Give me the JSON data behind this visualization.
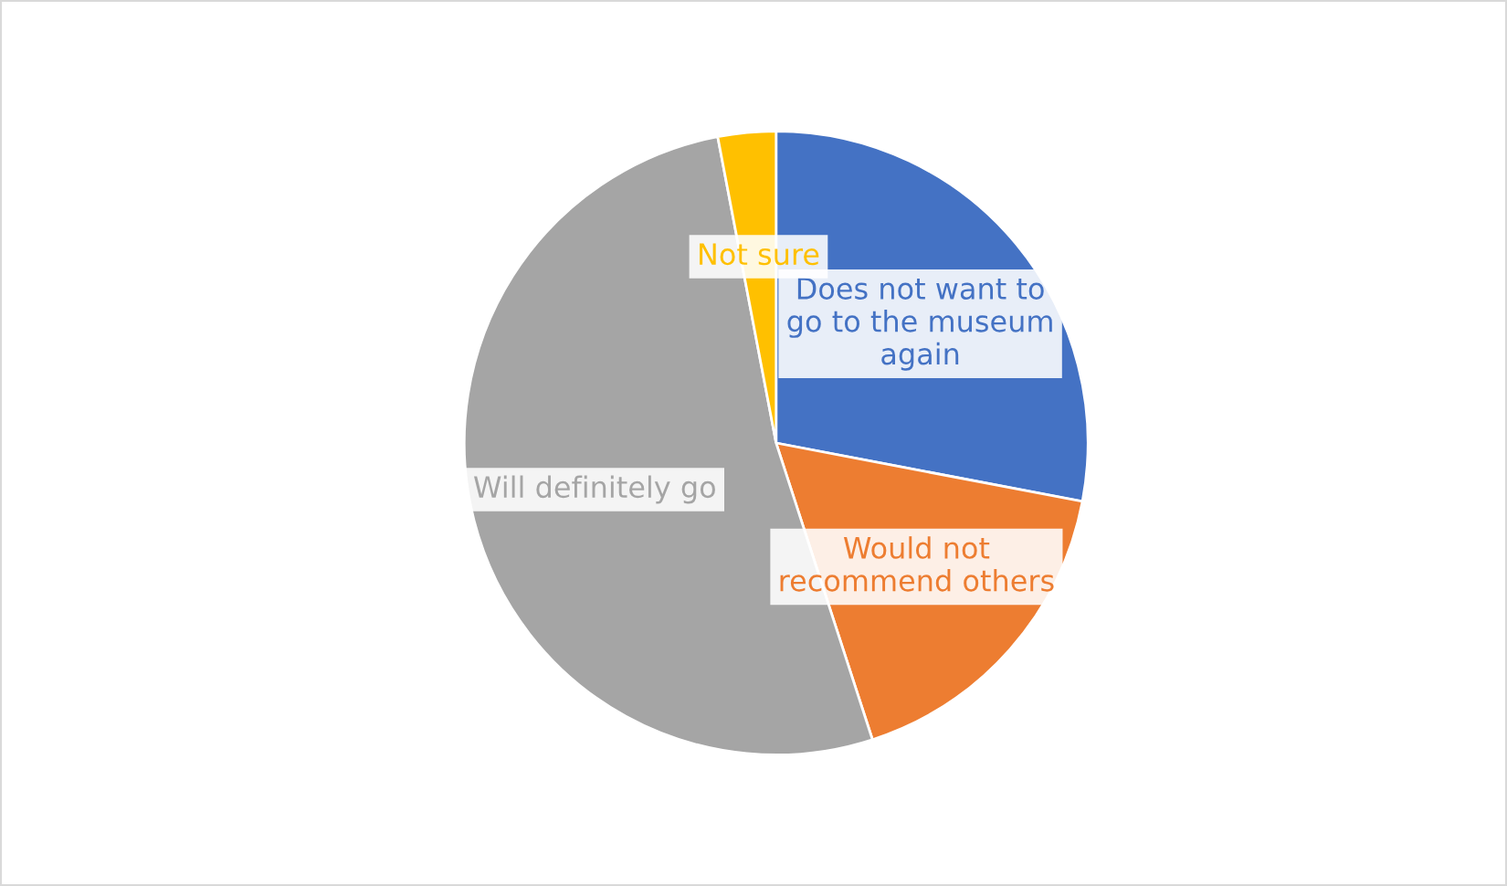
{
  "chart_data": {
    "type": "pie",
    "categories": [
      "Does not want to go to the museum again",
      "Would not recommend others",
      "Will definitely go",
      "Not sure"
    ],
    "values": [
      28,
      17,
      52,
      3
    ],
    "colors": [
      "#4472c4",
      "#ed7d31",
      "#a5a5a5",
      "#ffc000"
    ]
  }
}
